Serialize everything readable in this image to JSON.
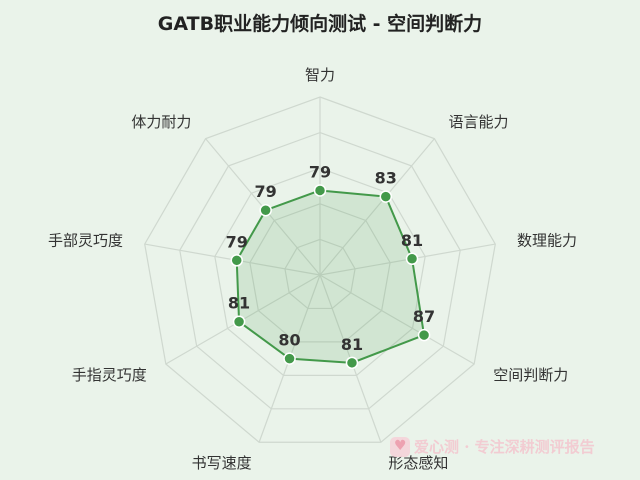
{
  "chart_data": {
    "type": "radar",
    "title": "GATB职业能力倾向测试 - 空间判断力",
    "categories": [
      "智力",
      "语言能力",
      "数理能力",
      "空间判断力",
      "形态感知",
      "书写速度",
      "手指灵巧度",
      "手部灵巧度",
      "体力耐力"
    ],
    "series": [
      {
        "values": [
          79,
          83,
          81,
          87,
          81,
          80,
          81,
          79,
          79
        ]
      }
    ],
    "rlim": [
      60,
      100
    ],
    "grid": true,
    "colors": {
      "line": "#43994a",
      "fill": "#43994a",
      "grid": "#cfd8cf"
    }
  },
  "watermark": {
    "text": "爱心测 · 专注深耕测评报告"
  }
}
